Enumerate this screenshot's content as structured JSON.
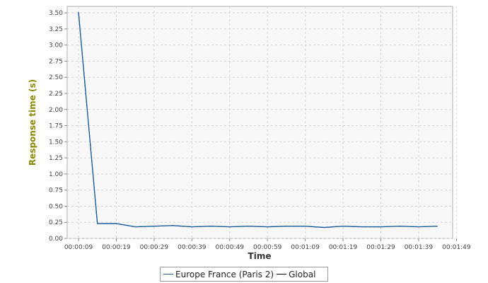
{
  "chart_data": {
    "type": "line",
    "xlabel": "Time",
    "ylabel": "Response time (s)",
    "x_ticks": [
      "00:00:09",
      "00:00:19",
      "00:00:29",
      "00:00:39",
      "00:00:49",
      "00:00:59",
      "00:01:09",
      "00:01:19",
      "00:01:29",
      "00:01:39",
      "00:01:49"
    ],
    "y_ticks": [
      "0.00",
      "0.25",
      "0.50",
      "0.75",
      "1.00",
      "1.25",
      "1.50",
      "1.75",
      "2.00",
      "2.25",
      "2.50",
      "2.75",
      "3.00",
      "3.25",
      "3.50"
    ],
    "xlim_seconds": [
      6,
      108
    ],
    "ylim": [
      0,
      3.6
    ],
    "grid": true,
    "legend_position": "bottom-center",
    "series": [
      {
        "name": "Europe France (Paris 2)",
        "color": "#1f5f9f",
        "x_seconds": [
          9,
          14,
          19,
          24,
          29,
          34,
          39,
          44,
          49,
          54,
          59,
          64,
          69,
          74,
          79,
          84,
          89,
          94,
          99,
          104
        ],
        "values": [
          3.51,
          0.23,
          0.23,
          0.18,
          0.19,
          0.2,
          0.18,
          0.19,
          0.18,
          0.19,
          0.18,
          0.19,
          0.19,
          0.17,
          0.19,
          0.18,
          0.18,
          0.19,
          0.18,
          0.19
        ]
      },
      {
        "name": "Global",
        "color": "#000000",
        "x_seconds": [
          9,
          14,
          19,
          24,
          29,
          34,
          39,
          44,
          49,
          54,
          59,
          64,
          69,
          74,
          79,
          84,
          89,
          94,
          99,
          104
        ],
        "values": [
          3.51,
          0.23,
          0.23,
          0.18,
          0.19,
          0.2,
          0.18,
          0.19,
          0.18,
          0.19,
          0.18,
          0.19,
          0.19,
          0.17,
          0.19,
          0.18,
          0.18,
          0.19,
          0.18,
          0.19
        ]
      }
    ]
  }
}
